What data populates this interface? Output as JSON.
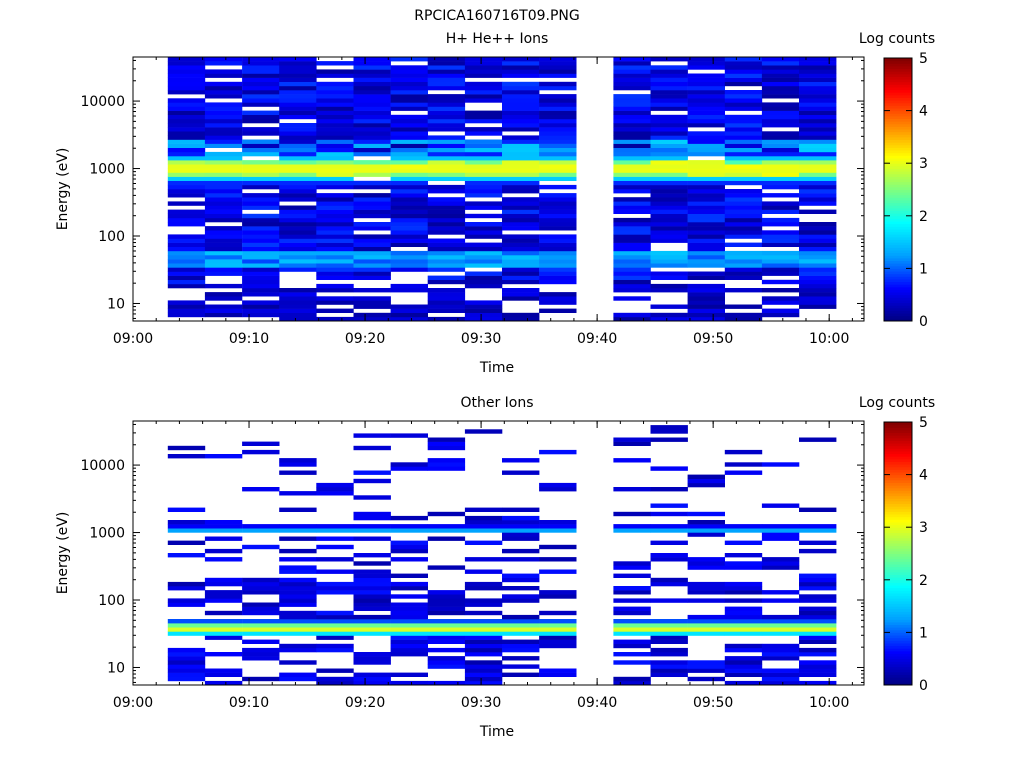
{
  "figure_title": "RPCICA160716T09.PNG",
  "colormap_stops": [
    "#00007f",
    "#0000ff",
    "#00a0ff",
    "#00ffff",
    "#7fff7f",
    "#ffff00",
    "#ff8000",
    "#ff0000",
    "#7f0000"
  ],
  "chart_data": [
    {
      "type": "heatmap",
      "title": "H+ He++ Ions",
      "xlabel": "Time",
      "ylabel": "Energy (eV)",
      "x_ticks": [
        "09:00",
        "09:10",
        "09:20",
        "09:30",
        "09:40",
        "09:50",
        "10:00"
      ],
      "y_ticks": [
        "10",
        "100",
        "1000",
        "10000"
      ],
      "yscale": "log",
      "ylim": [
        5.5,
        45000
      ],
      "xlim": [
        "09:00",
        "10:03"
      ],
      "colorbar": {
        "label": "Log counts",
        "ticks": [
          "0",
          "1",
          "2",
          "3",
          "4",
          "5"
        ],
        "range": [
          0,
          5
        ]
      },
      "time_columns": [
        "09:03",
        "09:06",
        "09:09",
        "09:12",
        "09:16",
        "09:19",
        "09:22",
        "09:25",
        "09:28",
        "09:31",
        "09:35",
        "09:38",
        "09:41",
        "09:44",
        "09:47",
        "09:50",
        "09:54",
        "09:57",
        "10:00"
      ],
      "data_gaps": [
        [
          "09:00",
          "09:03"
        ],
        [
          "09:38",
          "09:41"
        ],
        [
          "10:00",
          "10:03"
        ]
      ],
      "peak_energy_eV": 1000,
      "peak_log_counts": 3.1,
      "background_log_counts": 0.4
    },
    {
      "type": "heatmap",
      "title": "Other Ions",
      "xlabel": "Time",
      "ylabel": "Energy (eV)",
      "x_ticks": [
        "09:00",
        "09:10",
        "09:20",
        "09:30",
        "09:40",
        "09:50",
        "10:00"
      ],
      "y_ticks": [
        "10",
        "100",
        "1000",
        "10000"
      ],
      "yscale": "log",
      "ylim": [
        5.5,
        45000
      ],
      "xlim": [
        "09:00",
        "10:03"
      ],
      "colorbar": {
        "label": "Log counts",
        "ticks": [
          "0",
          "1",
          "2",
          "3",
          "4",
          "5"
        ],
        "range": [
          0,
          5
        ]
      },
      "data_gaps": [
        [
          "09:00",
          "09:03"
        ],
        [
          "09:38",
          "09:41"
        ],
        [
          "10:00",
          "10:03"
        ]
      ],
      "peak_energy_eV": 38,
      "peak_log_counts": 3.0,
      "secondary_band_energy_eV": 1100,
      "secondary_band_log_counts": 1.3
    }
  ]
}
